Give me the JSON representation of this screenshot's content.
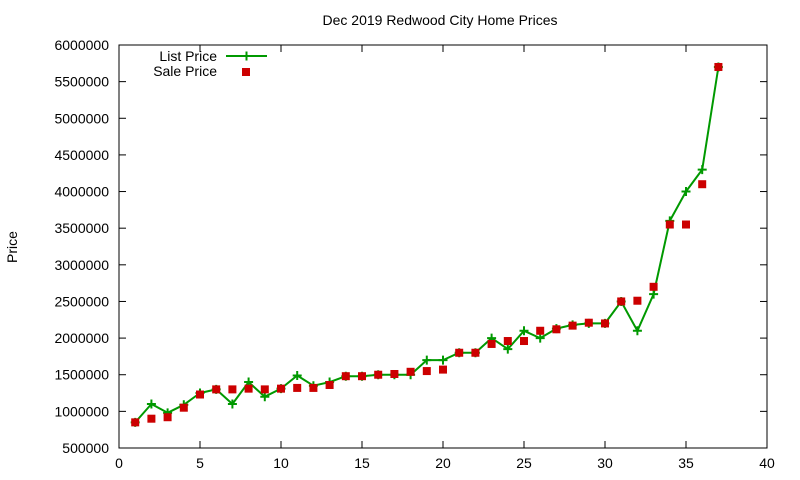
{
  "chart_data": {
    "type": "line",
    "title": "Dec 2019 Redwood City Home Prices",
    "xlabel": "",
    "ylabel": "Price",
    "xlim": [
      0,
      40
    ],
    "ylim": [
      500000,
      6000000
    ],
    "xticks": [
      0,
      5,
      10,
      15,
      20,
      25,
      30,
      35,
      40
    ],
    "yticks": [
      500000,
      1000000,
      1500000,
      2000000,
      2500000,
      3000000,
      3500000,
      4000000,
      4500000,
      5000000,
      5500000,
      6000000
    ],
    "grid": false,
    "legend_position": "top-left",
    "series": [
      {
        "name": "List Price",
        "style": "line-with-plus-markers",
        "color": "#009900",
        "x": [
          1,
          2,
          3,
          4,
          5,
          6,
          7,
          8,
          9,
          10,
          11,
          12,
          13,
          14,
          15,
          16,
          17,
          18,
          19,
          20,
          21,
          22,
          23,
          24,
          25,
          26,
          27,
          28,
          29,
          30,
          31,
          32,
          33,
          34,
          35,
          36,
          37
        ],
        "y": [
          850000,
          1100000,
          980000,
          1090000,
          1250000,
          1300000,
          1100000,
          1400000,
          1200000,
          1310000,
          1490000,
          1350000,
          1400000,
          1480000,
          1480000,
          1500000,
          1500000,
          1500000,
          1700000,
          1700000,
          1800000,
          1800000,
          2000000,
          1850000,
          2100000,
          2000000,
          2130000,
          2180000,
          2200000,
          2200000,
          2500000,
          2100000,
          2600000,
          3600000,
          4000000,
          4300000,
          5700000
        ]
      },
      {
        "name": "Sale Price",
        "style": "square-markers",
        "color": "#cc0000",
        "x": [
          1,
          2,
          3,
          4,
          5,
          6,
          7,
          8,
          9,
          10,
          11,
          12,
          13,
          14,
          15,
          16,
          17,
          18,
          19,
          20,
          21,
          22,
          23,
          24,
          25,
          26,
          27,
          28,
          29,
          30,
          31,
          32,
          33,
          34,
          35,
          36,
          37
        ],
        "y": [
          850000,
          900000,
          920000,
          1050000,
          1230000,
          1300000,
          1300000,
          1310000,
          1300000,
          1310000,
          1320000,
          1320000,
          1360000,
          1480000,
          1480000,
          1500000,
          1510000,
          1540000,
          1550000,
          1570000,
          1800000,
          1800000,
          1920000,
          1960000,
          1960000,
          2100000,
          2120000,
          2170000,
          2210000,
          2200000,
          2500000,
          2510000,
          2700000,
          3550000,
          3550000,
          4100000,
          5700000
        ]
      }
    ]
  }
}
